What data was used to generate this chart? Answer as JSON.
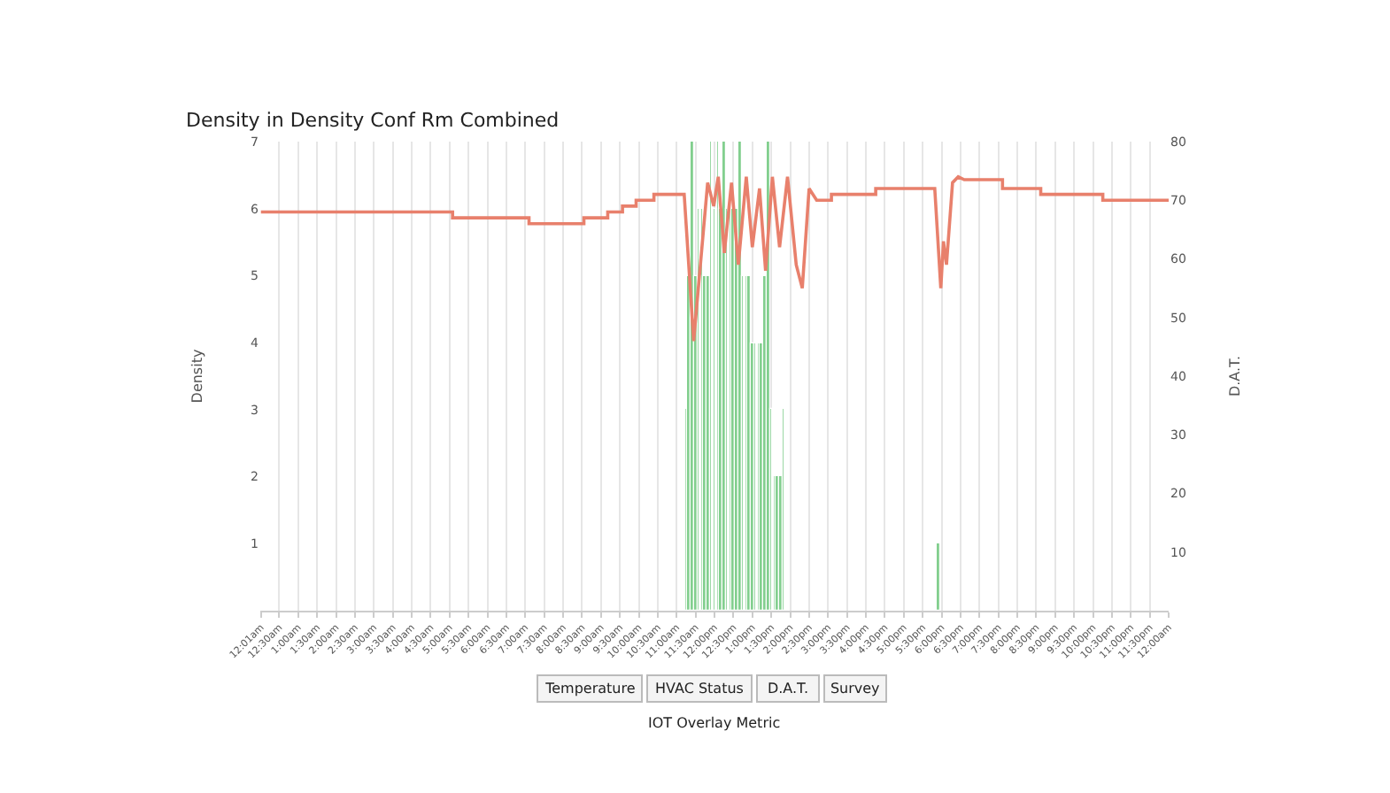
{
  "chart_data": {
    "type": "bar",
    "title": "Density in Density Conf Rm Combined",
    "xlabel": null,
    "ylabel": "Density",
    "y2label": "D.A.T.",
    "series": [
      {
        "color": "#82cf8e",
        "x": [
          11.25,
          11.333,
          11.417,
          11.5,
          11.583,
          11.667,
          11.75,
          11.833,
          11.917,
          12.0,
          12.083,
          12.167,
          12.25,
          12.333,
          12.417,
          12.5,
          12.583,
          12.667,
          12.75,
          12.833,
          12.917,
          13.0,
          13.083,
          13.167,
          13.25,
          13.333,
          13.417,
          13.5,
          13.583,
          13.667,
          13.75,
          13.833,
          17.917
        ],
        "values": [
          3,
          5,
          7,
          5,
          6,
          6,
          5,
          5,
          7,
          6,
          7,
          6,
          7,
          6,
          6,
          6,
          6,
          7,
          5,
          5,
          5,
          4,
          4,
          4,
          4,
          5,
          7,
          3,
          2,
          2,
          2,
          3,
          1
        ]
      },
      {
        "type": "line",
        "axis": "y2",
        "color": "#e8806c",
        "x": [
          0.017,
          5.08,
          5.08,
          7.1,
          7.1,
          8.55,
          8.55,
          9.18,
          9.18,
          9.57,
          9.57,
          9.93,
          9.93,
          10.4,
          10.4,
          11.2,
          11.45,
          11.82,
          11.98,
          12.1,
          12.26,
          12.45,
          12.63,
          12.84,
          13.0,
          13.19,
          13.35,
          13.53,
          13.72,
          13.93,
          14.16,
          14.32,
          14.5,
          14.7,
          15.09,
          15.09,
          16.26,
          16.26,
          17.82,
          17.98,
          18.05,
          18.13,
          18.29,
          18.44,
          18.6,
          19.61,
          19.61,
          20.62,
          20.62,
          22.26,
          22.26,
          24.0
        ],
        "values": [
          68,
          68,
          67,
          67,
          66,
          66,
          67,
          67,
          68,
          68,
          69,
          69,
          70,
          70,
          71,
          71,
          46,
          73,
          69,
          74,
          61,
          73,
          59,
          74,
          62,
          72,
          58,
          74,
          62,
          74,
          59,
          55,
          72,
          70,
          70,
          71,
          71,
          72,
          72,
          55,
          63,
          59,
          73,
          74,
          73.5,
          73.5,
          72,
          72,
          71,
          71,
          70,
          70
        ]
      }
    ],
    "xlim": [
      0,
      24
    ],
    "xticks": [
      {
        "value": 0.017,
        "label": "12:01am"
      },
      {
        "value": 0.5,
        "label": "12:30am"
      },
      {
        "value": 1,
        "label": "1:00am"
      },
      {
        "value": 1.5,
        "label": "1:30am"
      },
      {
        "value": 2,
        "label": "2:00am"
      },
      {
        "value": 2.5,
        "label": "2:30am"
      },
      {
        "value": 3,
        "label": "3:00am"
      },
      {
        "value": 3.5,
        "label": "3:30am"
      },
      {
        "value": 4,
        "label": "4:00am"
      },
      {
        "value": 4.5,
        "label": "4:30am"
      },
      {
        "value": 5,
        "label": "5:00am"
      },
      {
        "value": 5.5,
        "label": "5:30am"
      },
      {
        "value": 6,
        "label": "6:00am"
      },
      {
        "value": 6.5,
        "label": "6:30am"
      },
      {
        "value": 7,
        "label": "7:00am"
      },
      {
        "value": 7.5,
        "label": "7:30am"
      },
      {
        "value": 8,
        "label": "8:00am"
      },
      {
        "value": 8.5,
        "label": "8:30am"
      },
      {
        "value": 9,
        "label": "9:00am"
      },
      {
        "value": 9.5,
        "label": "9:30am"
      },
      {
        "value": 10,
        "label": "10:00am"
      },
      {
        "value": 10.5,
        "label": "10:30am"
      },
      {
        "value": 11,
        "label": "11:00am"
      },
      {
        "value": 11.5,
        "label": "11:30am"
      },
      {
        "value": 12,
        "label": "12:00pm"
      },
      {
        "value": 12.5,
        "label": "12:30pm"
      },
      {
        "value": 13,
        "label": "1:00pm"
      },
      {
        "value": 13.5,
        "label": "1:30pm"
      },
      {
        "value": 14,
        "label": "2:00pm"
      },
      {
        "value": 14.5,
        "label": "2:30pm"
      },
      {
        "value": 15,
        "label": "3:00pm"
      },
      {
        "value": 15.5,
        "label": "3:30pm"
      },
      {
        "value": 16,
        "label": "4:00pm"
      },
      {
        "value": 16.5,
        "label": "4:30pm"
      },
      {
        "value": 17,
        "label": "5:00pm"
      },
      {
        "value": 17.5,
        "label": "5:30pm"
      },
      {
        "value": 18,
        "label": "6:00pm"
      },
      {
        "value": 18.5,
        "label": "6:30pm"
      },
      {
        "value": 19,
        "label": "7:00pm"
      },
      {
        "value": 19.5,
        "label": "7:30pm"
      },
      {
        "value": 20,
        "label": "8:00pm"
      },
      {
        "value": 20.5,
        "label": "8:30pm"
      },
      {
        "value": 21,
        "label": "9:00pm"
      },
      {
        "value": 21.5,
        "label": "9:30pm"
      },
      {
        "value": 22,
        "label": "10:00pm"
      },
      {
        "value": 22.5,
        "label": "10:30pm"
      },
      {
        "value": 23,
        "label": "11:00pm"
      },
      {
        "value": 23.5,
        "label": "11:30pm"
      },
      {
        "value": 24,
        "label": "12:00am"
      }
    ],
    "ylim": [
      0,
      7
    ],
    "yticks": [
      1,
      2,
      3,
      4,
      5,
      6,
      7
    ],
    "y2lim": [
      0,
      80
    ],
    "y2ticks": [
      10,
      20,
      30,
      40,
      50,
      60,
      70,
      80
    ],
    "grid": "x",
    "legend": false,
    "marker": "none",
    "line_style": "solid",
    "annotations": [
      "Temperature",
      "HVAC Status",
      "D.A.T.",
      "Survey",
      "IOT Overlay Metric"
    ]
  }
}
